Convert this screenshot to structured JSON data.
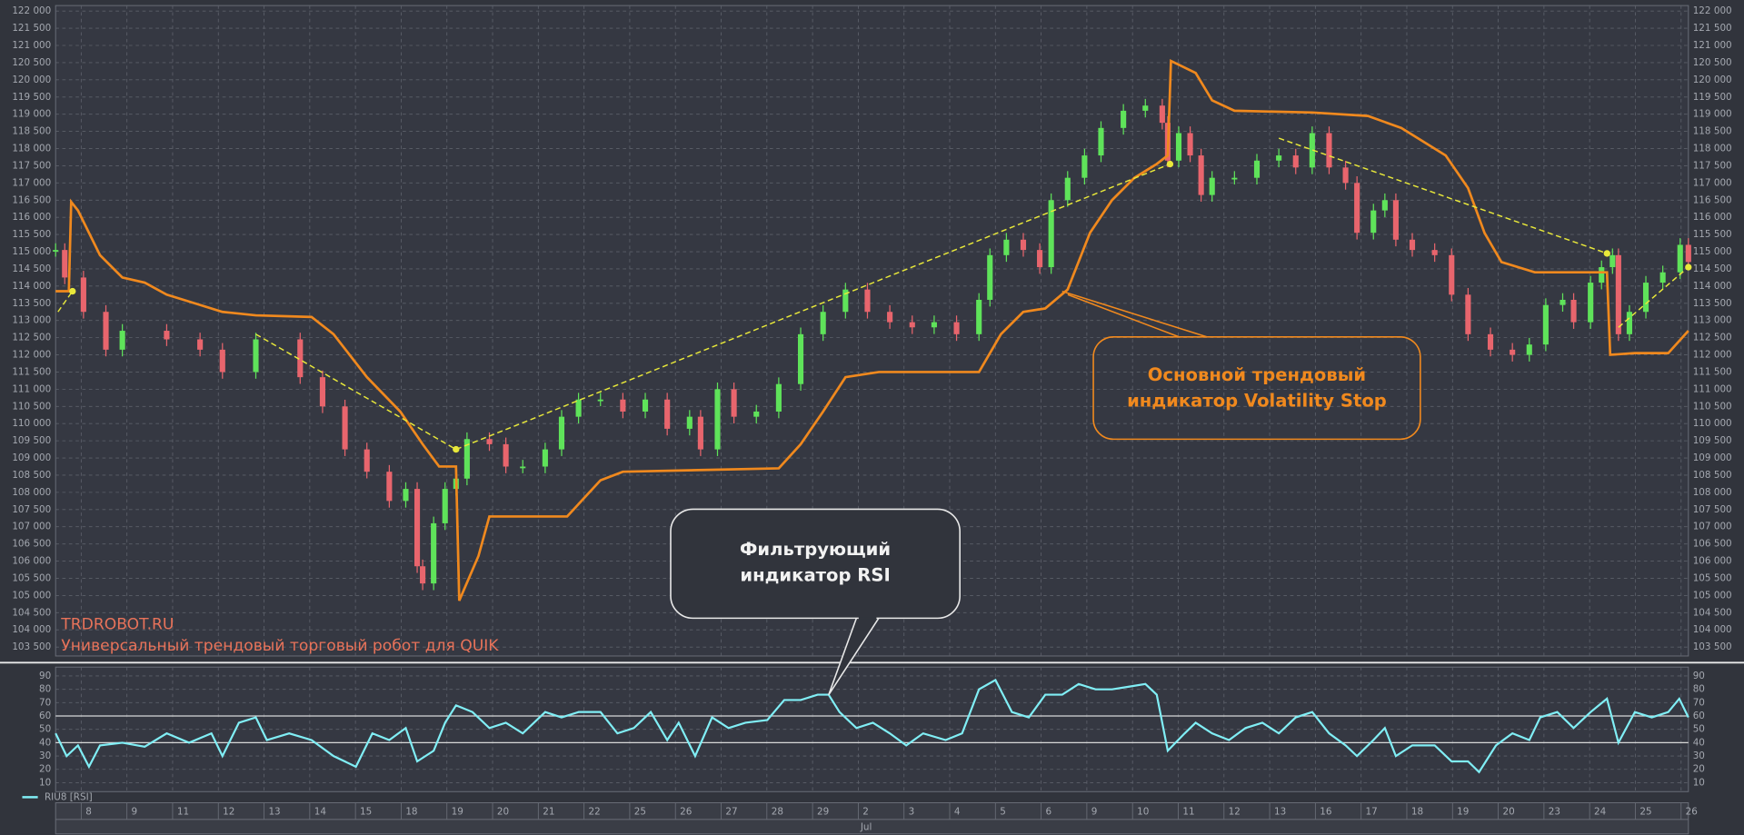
{
  "chart_data": [
    {
      "type": "candlestick",
      "categories": [
        "8",
        "9",
        "11",
        "12",
        "13",
        "14",
        "15",
        "18",
        "19",
        "20",
        "21",
        "22",
        "25",
        "26",
        "27",
        "28",
        "29",
        "2",
        "3",
        "4",
        "5",
        "6",
        "9",
        "10",
        "11",
        "12",
        "13",
        "16",
        "17",
        "18",
        "19",
        "20",
        "23",
        "24",
        "25",
        "26"
      ],
      "x_month_labels": [
        {
          "value": 17,
          "label": "Jul"
        }
      ],
      "xlim": [
        -0.56,
        35.16
      ],
      "ylim": [
        103240,
        122160
      ],
      "yticks": [
        {
          "value": 103500,
          "label": "103 500"
        },
        {
          "value": 104000,
          "label": "104 000"
        },
        {
          "value": 104500,
          "label": "104 500"
        },
        {
          "value": 105000,
          "label": "105 000"
        },
        {
          "value": 105500,
          "label": "105 500"
        },
        {
          "value": 106000,
          "label": "106 000"
        },
        {
          "value": 106500,
          "label": "106 500"
        },
        {
          "value": 107000,
          "label": "107 000"
        },
        {
          "value": 107500,
          "label": "107 500"
        },
        {
          "value": 108000,
          "label": "108 000"
        },
        {
          "value": 108500,
          "label": "108 500"
        },
        {
          "value": 109000,
          "label": "109 000"
        },
        {
          "value": 109500,
          "label": "109 500"
        },
        {
          "value": 110000,
          "label": "110 000"
        },
        {
          "value": 110500,
          "label": "110 500"
        },
        {
          "value": 111000,
          "label": "111 000"
        },
        {
          "value": 111500,
          "label": "111 500"
        },
        {
          "value": 112000,
          "label": "112 000"
        },
        {
          "value": 112500,
          "label": "112 500"
        },
        {
          "value": 113000,
          "label": "113 000"
        },
        {
          "value": 113500,
          "label": "113 500"
        },
        {
          "value": 114000,
          "label": "114 000"
        },
        {
          "value": 114500,
          "label": "114 500"
        },
        {
          "value": 115000,
          "label": "115 000"
        },
        {
          "value": 115500,
          "label": "115 500"
        },
        {
          "value": 116000,
          "label": "116 000"
        },
        {
          "value": 116500,
          "label": "116 500"
        },
        {
          "value": 117000,
          "label": "117 000"
        },
        {
          "value": 117500,
          "label": "117 500"
        },
        {
          "value": 118000,
          "label": "118 000"
        },
        {
          "value": 118500,
          "label": "118 500"
        },
        {
          "value": 119000,
          "label": "119 000"
        },
        {
          "value": 119500,
          "label": "119 500"
        },
        {
          "value": 120000,
          "label": "120 000"
        },
        {
          "value": 120500,
          "label": "120 500"
        },
        {
          "value": 121000,
          "label": "121 000"
        },
        {
          "value": 121500,
          "label": "121 500"
        },
        {
          "value": 122000,
          "label": "122 000"
        }
      ],
      "grid": true,
      "up_color": "#5fe35a",
      "down_color": "#e8656d",
      "x": [
        -0.56,
        -0.36,
        0.05,
        0.54,
        0.9,
        1.87,
        2.6,
        3.09,
        3.82,
        4.79,
        5.28,
        5.77,
        6.25,
        6.74,
        7.1,
        7.35,
        7.47,
        7.71,
        7.96,
        8.2,
        8.44,
        8.93,
        9.29,
        9.66,
        10.15,
        10.51,
        10.88,
        11.36,
        11.85,
        12.34,
        12.82,
        13.31,
        13.55,
        13.92,
        14.28,
        14.77,
        15.26,
        15.74,
        16.23,
        16.72,
        17.2,
        17.69,
        18.18,
        18.66,
        19.15,
        19.64,
        19.88,
        20.24,
        20.61,
        20.97,
        21.22,
        21.58,
        21.95,
        22.31,
        22.8,
        23.28,
        23.65,
        23.77,
        24.01,
        24.26,
        24.5,
        24.74,
        25.23,
        25.72,
        26.2,
        26.57,
        26.93,
        27.3,
        27.66,
        27.91,
        28.27,
        28.52,
        28.76,
        29.12,
        29.61,
        29.98,
        30.34,
        30.83,
        31.31,
        31.68,
        32.04,
        32.41,
        32.65,
        33.02,
        33.26,
        33.5,
        33.63,
        33.87,
        34.23,
        34.6,
        34.98,
        35.16
      ],
      "values": [
        115050,
        114250,
        113250,
        112150,
        112700,
        112450,
        112150,
        111500,
        112450,
        111350,
        110500,
        109250,
        108600,
        107750,
        108100,
        105850,
        105350,
        107100,
        108100,
        108400,
        109550,
        109400,
        108750,
        108750,
        109250,
        110200,
        110700,
        110700,
        110350,
        110700,
        109850,
        110200,
        109250,
        111000,
        110200,
        110350,
        111150,
        112600,
        113250,
        113900,
        113250,
        112950,
        112800,
        112950,
        112600,
        113600,
        114900,
        115350,
        115050,
        114550,
        116500,
        117150,
        117800,
        118600,
        119100,
        119250,
        118750,
        117650,
        118450,
        117800,
        116650,
        117150,
        117150,
        117650,
        117800,
        117450,
        118450,
        117450,
        117000,
        115550,
        116200,
        116500,
        115350,
        115050,
        114900,
        113750,
        112600,
        112150,
        112000,
        112300,
        113450,
        113600,
        112950,
        114100,
        114550,
        114900,
        112600,
        113250,
        114100,
        114400,
        115200,
        114700
      ],
      "stop": {
        "color": "#f0891e",
        "x": [
          -0.56,
          -0.27,
          -0.22,
          -0.07,
          0.41,
          0.9,
          1.39,
          1.87,
          2.36,
          3.09,
          3.82,
          5.04,
          5.52,
          6.25,
          6.98,
          7.47,
          7.83,
          8.2,
          8.27,
          8.69,
          8.93,
          10.63,
          11.36,
          11.85,
          15.26,
          15.74,
          16.23,
          16.72,
          17.45,
          19.64,
          20.12,
          20.61,
          21.09,
          21.58,
          22.07,
          22.55,
          23.04,
          23.53,
          23.77,
          23.84,
          24.38,
          24.74,
          25.23,
          26.93,
          28.15,
          28.88,
          29.85,
          30.34,
          30.7,
          31.07,
          31.8,
          33.38,
          33.45,
          33.99,
          34.72,
          35.16
        ],
        "values": [
          113850,
          113850,
          116450,
          116200,
          114900,
          114250,
          114100,
          113750,
          113550,
          113250,
          113150,
          113100,
          112600,
          111350,
          110350,
          109400,
          108750,
          108750,
          104850,
          106150,
          107300,
          107300,
          108350,
          108600,
          108700,
          109400,
          110350,
          111350,
          111500,
          111500,
          112600,
          113250,
          113350,
          113900,
          115550,
          116500,
          117150,
          117550,
          117800,
          120550,
          120200,
          119400,
          119100,
          119050,
          118950,
          118600,
          117800,
          116850,
          115550,
          114700,
          114400,
          114400,
          112000,
          112050,
          112050,
          112700
        ]
      },
      "trend_lines": {
        "color": "#e8e83a",
        "lines": [
          {
            "x": [
              -0.51,
              -0.19
            ],
            "values": [
              113250,
              113850
            ]
          },
          {
            "x": [
              3.82,
              8.2
            ],
            "values": [
              112600,
              109250
            ]
          },
          {
            "x": [
              8.2,
              23.82
            ],
            "values": [
              109250,
              117550
            ]
          },
          {
            "x": [
              26.2,
              33.38
            ],
            "values": [
              118300,
              114950
            ]
          },
          {
            "x": [
              33.63,
              35.16
            ],
            "values": [
              112800,
              114550
            ]
          }
        ]
      },
      "watermark": [
        "TRDROBOT.RU",
        "Универсальный трендовый торговый робот для QUIK"
      ],
      "callout": [
        "Основной трендовый",
        "индикатор Volatility Stop"
      ]
    },
    {
      "type": "line",
      "xlim": [
        -0.56,
        35.16
      ],
      "ylim": [
        3.3,
        98.3
      ],
      "yticks": [
        10,
        20,
        30,
        40,
        50,
        60,
        70,
        80,
        90
      ],
      "levels": [
        40,
        60
      ],
      "series": [
        {
          "name": "RIU8 [RSI]",
          "color": "#80eef5",
          "x": [
            -0.56,
            -0.32,
            -0.07,
            0.17,
            0.41,
            0.9,
            1.39,
            1.87,
            2.36,
            2.85,
            3.09,
            3.45,
            3.82,
            4.06,
            4.55,
            5.04,
            5.52,
            6.01,
            6.37,
            6.74,
            7.1,
            7.35,
            7.71,
            7.96,
            8.2,
            8.56,
            8.93,
            9.29,
            9.66,
            10.15,
            10.51,
            10.88,
            11.36,
            11.73,
            12.09,
            12.46,
            12.82,
            13.07,
            13.43,
            13.8,
            14.16,
            14.53,
            15.01,
            15.38,
            15.74,
            16.11,
            16.35,
            16.59,
            16.96,
            17.32,
            17.69,
            18.05,
            18.42,
            18.91,
            19.27,
            19.64,
            20.0,
            20.36,
            20.73,
            21.09,
            21.46,
            21.82,
            22.19,
            22.55,
            22.92,
            23.28,
            23.53,
            23.77,
            24.14,
            24.38,
            24.74,
            25.11,
            25.47,
            25.84,
            26.2,
            26.57,
            26.93,
            27.3,
            27.66,
            27.91,
            28.27,
            28.52,
            28.76,
            29.12,
            29.61,
            29.98,
            30.34,
            30.58,
            30.95,
            31.31,
            31.68,
            31.92,
            32.29,
            32.65,
            33.02,
            33.38,
            33.63,
            33.99,
            34.36,
            34.72,
            34.96,
            35.16
          ],
          "values": [
            47,
            30,
            38,
            22,
            38,
            40,
            37,
            47,
            40,
            47,
            30,
            55,
            59,
            42,
            47,
            42,
            30,
            22,
            47,
            42,
            51,
            26,
            34,
            55,
            68,
            63,
            51,
            55,
            47,
            63,
            59,
            63,
            63,
            47,
            51,
            63,
            42,
            55,
            30,
            59,
            51,
            55,
            57,
            72,
            72,
            76,
            76,
            63,
            51,
            55,
            47,
            38,
            47,
            42,
            47,
            80,
            87,
            63,
            59,
            76,
            76,
            84,
            80,
            80,
            82,
            84,
            76,
            34,
            47,
            55,
            47,
            42,
            51,
            55,
            47,
            59,
            63,
            47,
            38,
            30,
            42,
            51,
            30,
            38,
            38,
            26,
            26,
            18,
            38,
            47,
            42,
            59,
            63,
            51,
            63,
            73,
            40,
            63,
            59,
            63,
            73,
            59
          ]
        }
      ],
      "callout": [
        "Фильтрующий",
        "индикатор RSI"
      ]
    }
  ]
}
